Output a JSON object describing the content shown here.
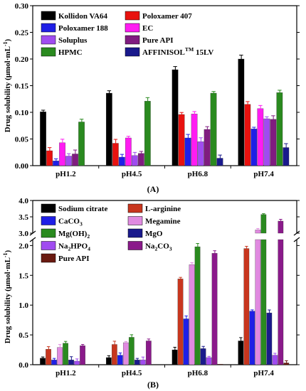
{
  "chart_data": [
    {
      "panel_label": "(A)",
      "type": "bar",
      "ylabel": "Drug solubility (μmol·mL",
      "ylabel_sup": "-1",
      "ylabel_close": ")",
      "ylim": [
        0,
        0.3
      ],
      "yticks": [
        "0.00",
        "0.05",
        "0.10",
        "0.15",
        "0.20",
        "0.25",
        "0.30"
      ],
      "categories": [
        "pH1.2",
        "pH4.5",
        "pH6.8",
        "pH7.4"
      ],
      "legend_placement": "top-left",
      "series": [
        {
          "name": "Kollidon VA64",
          "color": "#000000",
          "values": [
            0.101,
            0.136,
            0.18,
            0.2
          ]
        },
        {
          "name": "Poloxamer 407",
          "color": "#e8120f",
          "values": [
            0.028,
            0.042,
            0.096,
            0.115
          ]
        },
        {
          "name": "Poloxamer 188",
          "color": "#1f1fe6",
          "values": [
            0.009,
            0.016,
            0.052,
            0.069
          ]
        },
        {
          "name": "EC",
          "color": "#ff1cf2",
          "values": [
            0.043,
            0.052,
            0.097,
            0.107
          ]
        },
        {
          "name": "Soluplus",
          "color": "#a04cf0",
          "values": [
            0.018,
            0.019,
            0.045,
            0.088
          ]
        },
        {
          "name": "Pure API",
          "color": "#801c80",
          "values": [
            0.022,
            0.023,
            0.068,
            0.087
          ]
        },
        {
          "name": "HPMC",
          "color": "#2a8a1f",
          "values": [
            0.082,
            0.121,
            0.136,
            0.137
          ]
        },
        {
          "name": "AFFINISOL",
          "name_sup": "TM",
          "name_suffix": " 15LV",
          "color": "#1a1a8c",
          "values": [
            0.0,
            0.0,
            0.014,
            0.034
          ]
        }
      ]
    },
    {
      "panel_label": "(B)",
      "type": "bar",
      "ylabel": "Drug solubility (μmol·mL",
      "ylabel_sup": "-1",
      "ylabel_close": ")",
      "axis_break": [
        2.1,
        3.0
      ],
      "ylim": [
        0,
        4.0
      ],
      "yticks_lower": [
        "0.0",
        "0.5",
        "1.0",
        "1.5",
        "2.0"
      ],
      "yticks_upper": [
        "3.0",
        "3.5",
        "4.0"
      ],
      "categories": [
        "pH1.2",
        "pH4.5",
        "pH6.8",
        "pH7.4"
      ],
      "legend_placement": "top-left",
      "series": [
        {
          "name": "Sodium citrate",
          "color": "#000000",
          "values": [
            0.11,
            0.12,
            0.25,
            0.4
          ]
        },
        {
          "name": "L-arginine",
          "color": "#c8361e",
          "values": [
            0.26,
            0.34,
            1.44,
            1.95
          ]
        },
        {
          "name": "CaCO",
          "name_sub": "3",
          "color": "#1f1fe6",
          "values": [
            0.08,
            0.16,
            0.77,
            0.9
          ]
        },
        {
          "name": "Megamine",
          "color": "#e08ae0",
          "values": [
            0.29,
            0.37,
            1.68,
            3.1
          ]
        },
        {
          "name": "Mg(OH)",
          "name_sub": "2",
          "color": "#2a8a1f",
          "values": [
            0.36,
            0.46,
            1.98,
            3.57
          ]
        },
        {
          "name": "MgO",
          "color": "#1a1a8c",
          "values": [
            0.08,
            0.08,
            0.27,
            0.87
          ]
        },
        {
          "name": "Na",
          "name_sub": "2",
          "name_suffix": "HPO",
          "name_sub2": "4",
          "color": "#a04cf0",
          "values": [
            0.06,
            0.08,
            0.12,
            0.16
          ]
        },
        {
          "name": "Na",
          "name_sub": "2",
          "name_suffix": "CO",
          "name_sub2": "3",
          "color": "#8a1a8a",
          "values": [
            0.32,
            0.4,
            1.87,
            3.37
          ]
        },
        {
          "name": "Pure API",
          "color": "#6a1a10",
          "values": [
            0.0,
            0.0,
            0.01,
            0.03
          ]
        }
      ]
    }
  ]
}
